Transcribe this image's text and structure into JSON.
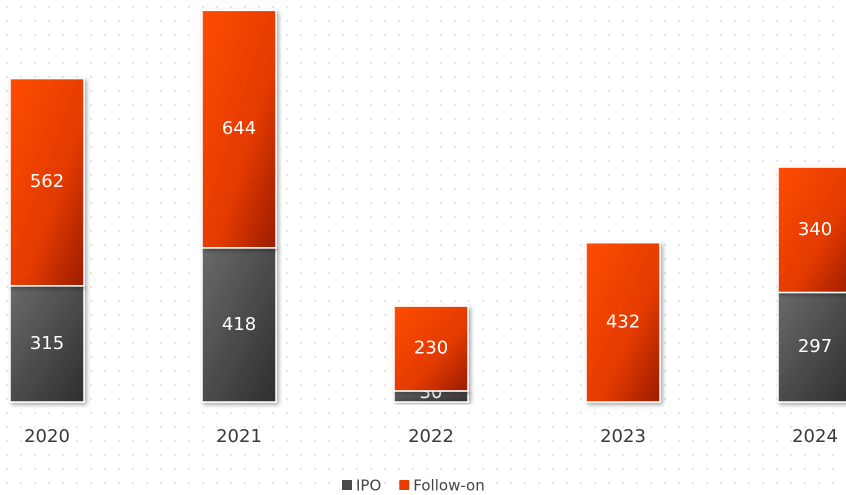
{
  "chart_data": {
    "type": "stacked-bar",
    "categories": [
      "2020",
      "2021",
      "2022",
      "2023",
      "2024"
    ],
    "series": [
      {
        "name": "IPO",
        "color": "#4a4a4a",
        "values": [
          315,
          418,
          30,
          0,
          297
        ]
      },
      {
        "name": "Follow-on",
        "color": "#e63c00",
        "values": [
          562,
          644,
          230,
          432,
          340
        ]
      }
    ],
    "ylim": [
      0,
      1090
    ],
    "legend": "bottom"
  }
}
